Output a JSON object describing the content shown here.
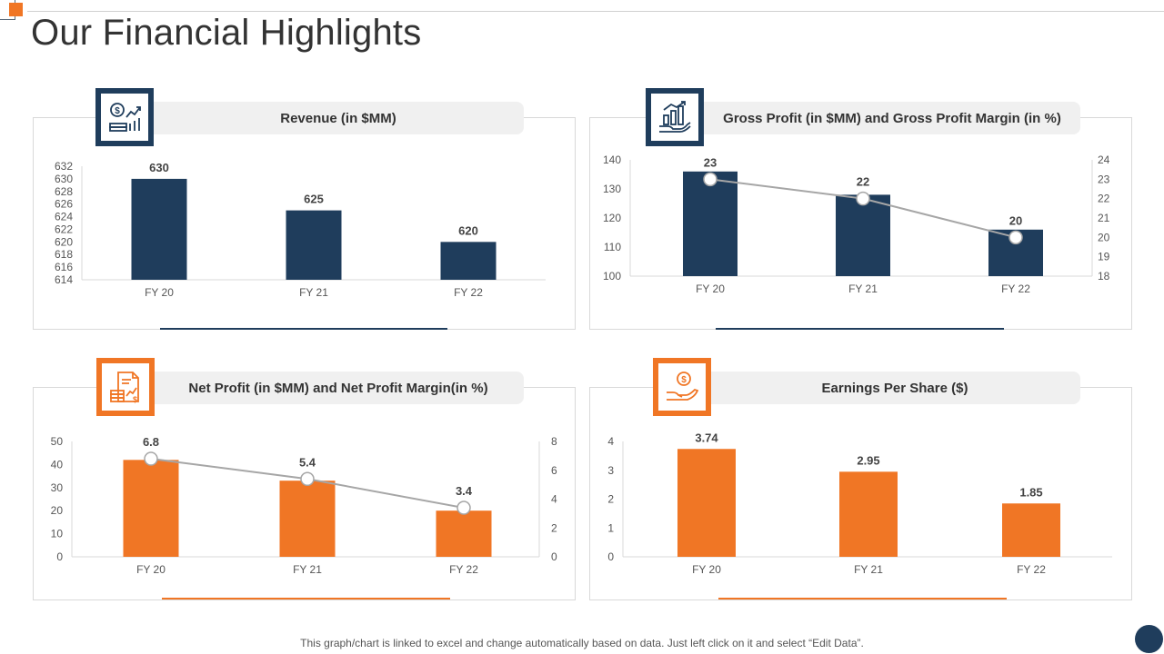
{
  "page": {
    "title": "Our Financial Highlights",
    "footer_note": "This graph/chart is linked to excel and change automatically based on data. Just left click on it and select “Edit Data”."
  },
  "colors": {
    "navy": "#1f3d5c",
    "orange": "#f07625",
    "line": "#a6a6a6",
    "text": "#333333"
  },
  "chart_data": [
    {
      "type": "bar",
      "title": "Revenue (in $MM)",
      "icon": "money-growth-icon",
      "categories": [
        "FY 20",
        "FY 21",
        "FY 22"
      ],
      "values": [
        630,
        625,
        620
      ],
      "data_labels": [
        "630",
        "625",
        "620"
      ],
      "ylim": [
        614,
        632
      ],
      "yticks": [
        614,
        616,
        618,
        620,
        622,
        624,
        626,
        628,
        630,
        632
      ],
      "color": "#1f3d5c",
      "xlabel": "",
      "ylabel": ""
    },
    {
      "type": "bar",
      "title": "Gross Profit (in $MM) and Gross Profit Margin (in %)",
      "icon": "growth-hand-icon",
      "categories": [
        "FY 20",
        "FY 21",
        "FY 22"
      ],
      "series": [
        {
          "name": "Gross Profit",
          "type": "bar",
          "values": [
            136,
            128,
            116
          ]
        },
        {
          "name": "Gross Profit Margin",
          "type": "line",
          "axis": "secondary",
          "values": [
            23,
            22,
            20
          ],
          "data_labels": [
            "23",
            "22",
            "20"
          ]
        }
      ],
      "ylim": [
        100,
        140
      ],
      "yticks": [
        100,
        110,
        120,
        130,
        140
      ],
      "y2lim": [
        18,
        24
      ],
      "y2ticks": [
        18,
        19,
        20,
        21,
        22,
        23,
        24
      ],
      "color": "#1f3d5c",
      "xlabel": "",
      "ylabel": ""
    },
    {
      "type": "bar",
      "title": "Net Profit (in $MM) and Net Profit Margin(in %)",
      "icon": "financial-document-icon",
      "categories": [
        "FY 20",
        "FY 21",
        "FY 22"
      ],
      "series": [
        {
          "name": "Net Profit",
          "type": "bar",
          "values": [
            42,
            33,
            20
          ]
        },
        {
          "name": "Net Profit Margin",
          "type": "line",
          "axis": "secondary",
          "values": [
            6.8,
            5.4,
            3.4
          ],
          "data_labels": [
            "6.8",
            "5.4",
            "3.4"
          ]
        }
      ],
      "ylim": [
        0,
        50
      ],
      "yticks": [
        0,
        10,
        20,
        30,
        40,
        50
      ],
      "y2lim": [
        0,
        8
      ],
      "y2ticks": [
        0,
        2,
        4,
        6,
        8
      ],
      "color": "#f07625",
      "xlabel": "",
      "ylabel": ""
    },
    {
      "type": "bar",
      "title": "Earnings Per Share ($)",
      "icon": "hand-coin-icon",
      "categories": [
        "FY 20",
        "FY 21",
        "FY 22"
      ],
      "values": [
        3.74,
        2.95,
        1.85
      ],
      "data_labels": [
        "3.74",
        "2.95",
        "1.85"
      ],
      "ylim": [
        0,
        4
      ],
      "yticks": [
        0,
        1,
        2,
        3,
        4
      ],
      "color": "#f07625",
      "xlabel": "",
      "ylabel": ""
    }
  ]
}
